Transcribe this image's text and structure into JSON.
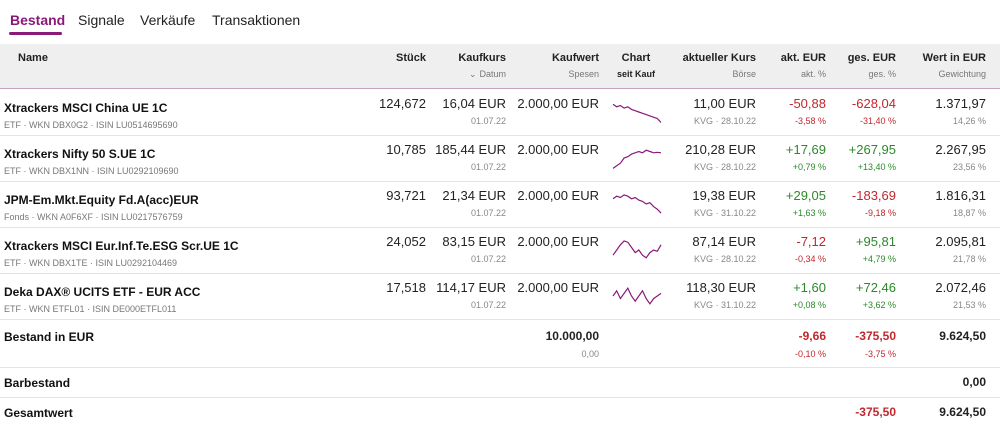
{
  "tabs": [
    {
      "label": "Bestand",
      "active": true
    },
    {
      "label": "Signale",
      "active": false
    },
    {
      "label": "Verkäufe",
      "active": false
    },
    {
      "label": "Transaktionen",
      "active": false
    }
  ],
  "columns": {
    "name": "Name",
    "stueck": "Stück",
    "kaufkurs": "Kaufkurs",
    "datum_sort": "Datum",
    "kaufwert": "Kaufwert",
    "spesen": "Spesen",
    "chart": "Chart",
    "chart_sub": "seit Kauf",
    "aktueller_kurs": "aktueller Kurs",
    "boerse": "Börse",
    "akt_eur": "akt. EUR",
    "akt_pct": "akt. %",
    "ges_eur": "ges. EUR",
    "ges_pct": "ges. %",
    "wert_eur": "Wert in EUR",
    "gewichtung": "Gewichtung"
  },
  "positions": [
    {
      "name": "Xtrackers MSCI China UE 1C",
      "meta": "ETF · WKN DBX0G2 · ISIN LU0514695690",
      "stueck": "124,672",
      "kaufkurs": "16,04 EUR",
      "datum": "01.07.22",
      "kaufwert": "2.000,00 EUR",
      "kurs": "11,00 EUR",
      "boerse": "KVG · 28.10.22",
      "akt_eur": "-50,88",
      "akt_pct": "-3,58 %",
      "ges_eur": "-628,04",
      "ges_pct": "-31,40 %",
      "wert": "1.371,97",
      "gewichtung": "14,26 %",
      "akt_sign": "neg",
      "ges_sign": "neg",
      "trend": [
        0.2,
        0.3,
        0.25,
        0.35,
        0.3,
        0.4,
        0.45,
        0.5,
        0.55,
        0.6,
        0.65,
        0.7,
        0.75,
        0.9
      ]
    },
    {
      "name": "Xtrackers Nifty 50 S.UE 1C",
      "meta": "ETF · WKN DBX1NN · ISIN LU0292109690",
      "stueck": "10,785",
      "kaufkurs": "185,44 EUR",
      "datum": "01.07.22",
      "kaufwert": "2.000,00 EUR",
      "kurs": "210,28 EUR",
      "boerse": "KVG · 28.10.22",
      "akt_eur": "+17,69",
      "akt_pct": "+0,79 %",
      "ges_eur": "+267,95",
      "ges_pct": "+13,40 %",
      "wert": "2.267,95",
      "gewichtung": "23,56 %",
      "akt_sign": "pos",
      "ges_sign": "pos",
      "trend": [
        0.9,
        0.8,
        0.7,
        0.5,
        0.45,
        0.35,
        0.3,
        0.25,
        0.3,
        0.2,
        0.25,
        0.3,
        0.28,
        0.3
      ]
    },
    {
      "name": "JPM-Em.Mkt.Equity Fd.A(acc)EUR",
      "meta": "Fonds · WKN A0F6XF · ISIN LU0217576759",
      "stueck": "93,721",
      "kaufkurs": "21,34 EUR",
      "datum": "01.07.22",
      "kaufwert": "2.000,00 EUR",
      "kurs": "19,38 EUR",
      "boerse": "KVG · 31.10.22",
      "akt_eur": "+29,05",
      "akt_pct": "+1,63 %",
      "ges_eur": "-183,69",
      "ges_pct": "-9,18 %",
      "wert": "1.816,31",
      "gewichtung": "18,87 %",
      "akt_sign": "pos",
      "ges_sign": "neg",
      "trend": [
        0.3,
        0.2,
        0.25,
        0.15,
        0.2,
        0.3,
        0.25,
        0.35,
        0.4,
        0.5,
        0.45,
        0.6,
        0.7,
        0.85
      ]
    },
    {
      "name": "Xtrackers MSCI Eur.Inf.Te.ESG Scr.UE 1C",
      "meta": "ETF · WKN DBX1TE · ISIN LU0292104469",
      "stueck": "24,052",
      "kaufkurs": "83,15 EUR",
      "datum": "01.07.22",
      "kaufwert": "2.000,00 EUR",
      "kurs": "87,14 EUR",
      "boerse": "KVG · 28.10.22",
      "akt_eur": "-7,12",
      "akt_pct": "-0,34 %",
      "ges_eur": "+95,81",
      "ges_pct": "+4,79 %",
      "wert": "2.095,81",
      "gewichtung": "21,78 %",
      "akt_sign": "neg",
      "ges_sign": "pos",
      "trend": [
        0.7,
        0.5,
        0.3,
        0.15,
        0.2,
        0.4,
        0.6,
        0.5,
        0.7,
        0.8,
        0.6,
        0.5,
        0.55,
        0.3
      ]
    },
    {
      "name": "Deka DAX® UCITS ETF - EUR ACC",
      "meta": "ETF · WKN ETFL01 · ISIN DE000ETFL011",
      "stueck": "17,518",
      "kaufkurs": "114,17 EUR",
      "datum": "01.07.22",
      "kaufwert": "2.000,00 EUR",
      "kurs": "118,30 EUR",
      "boerse": "KVG · 31.10.22",
      "akt_eur": "+1,60",
      "akt_pct": "+0,08 %",
      "ges_eur": "+72,46",
      "ges_pct": "+3,62 %",
      "wert": "2.072,46",
      "gewichtung": "21,53 %",
      "akt_sign": "pos",
      "ges_sign": "pos",
      "trend": [
        0.5,
        0.3,
        0.6,
        0.4,
        0.2,
        0.5,
        0.7,
        0.5,
        0.3,
        0.6,
        0.8,
        0.6,
        0.5,
        0.4
      ]
    }
  ],
  "bestand": {
    "label": "Bestand in EUR",
    "kaufwert": "10.000,00",
    "spesen": "0,00",
    "akt_eur": "-9,66",
    "akt_pct": "-0,10 %",
    "ges_eur": "-375,50",
    "ges_pct": "-3,75 %",
    "wert": "9.624,50"
  },
  "barbestand": {
    "label": "Barbestand",
    "wert": "0,00"
  },
  "gesamtwert": {
    "label": "Gesamtwert",
    "ges_eur": "-375,50",
    "wert": "9.624,50"
  },
  "colors": {
    "accent": "#8a1a7a",
    "positive": "#2a8a2a",
    "negative": "#c0282e",
    "chart": "#8a1a7a"
  }
}
